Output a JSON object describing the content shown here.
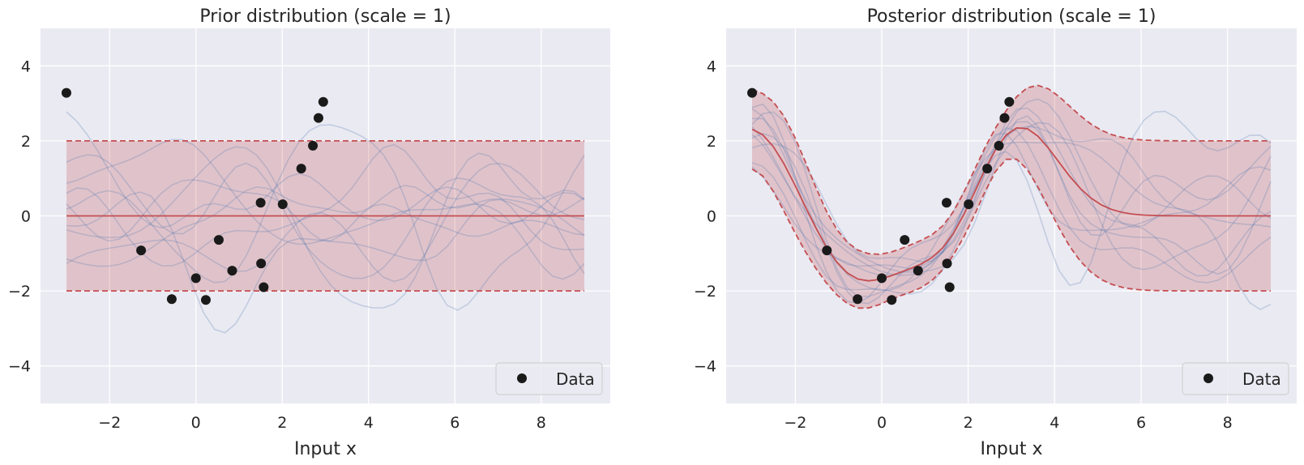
{
  "chart_data": [
    {
      "type": "line",
      "title": "Prior distribution (scale = 1)",
      "xlabel": "Input x",
      "ylabel": "",
      "xlim": [
        -3.6,
        9.6
      ],
      "ylim": [
        -5,
        5
      ],
      "xticks": [
        -2,
        0,
        2,
        4,
        6,
        8
      ],
      "yticks": [
        -4,
        -2,
        0,
        2,
        4
      ],
      "xtick_labels": [
        "−2",
        "0",
        "2",
        "4",
        "6",
        "8"
      ],
      "ytick_labels": [
        "−4",
        "−2",
        "0",
        "2",
        "4"
      ],
      "grid": true,
      "legend": {
        "position": "bottom-right",
        "entries": [
          "Data"
        ]
      },
      "mean_line": {
        "x": [
          -3,
          9
        ],
        "y": [
          0,
          0
        ]
      },
      "band": {
        "lower": -2,
        "upper": 2
      },
      "sample_count": 10,
      "data_points": {
        "name": "Data",
        "x": [
          -3.0,
          -1.27,
          -0.56,
          0.0,
          0.23,
          0.53,
          0.84,
          1.5,
          1.51,
          1.57,
          2.01,
          2.44,
          2.71,
          2.84,
          2.95
        ],
        "y": [
          3.28,
          -0.92,
          -2.22,
          -1.66,
          -2.24,
          -0.64,
          -1.46,
          0.35,
          -1.27,
          -1.9,
          0.31,
          1.26,
          1.87,
          2.61,
          3.04
        ]
      }
    },
    {
      "type": "line",
      "title": "Posterior distribution (scale = 1)",
      "xlabel": "Input x",
      "ylabel": "",
      "xlim": [
        -3.6,
        9.6
      ],
      "ylim": [
        -5,
        5
      ],
      "xticks": [
        -2,
        0,
        2,
        4,
        6,
        8
      ],
      "yticks": [
        -4,
        -2,
        0,
        2,
        4
      ],
      "xtick_labels": [
        "−2",
        "0",
        "2",
        "4",
        "6",
        "8"
      ],
      "ytick_labels": [
        "−4",
        "−2",
        "0",
        "2",
        "4"
      ],
      "grid": true,
      "legend": {
        "position": "bottom-right",
        "entries": [
          "Data"
        ]
      },
      "sample_count": 10,
      "data_points": {
        "name": "Data",
        "x": [
          -3.0,
          -1.27,
          -0.56,
          0.0,
          0.23,
          0.53,
          0.84,
          1.5,
          1.51,
          1.57,
          2.01,
          2.44,
          2.71,
          2.84,
          2.95
        ],
        "y": [
          3.28,
          -0.92,
          -2.22,
          -1.66,
          -2.24,
          -0.64,
          -1.46,
          0.35,
          -1.27,
          -1.9,
          0.31,
          1.26,
          1.87,
          2.61,
          3.04
        ]
      }
    }
  ],
  "colors": {
    "axes_background": "#eaeaf2",
    "grid": "#ffffff",
    "mean_and_band": "#c44e52",
    "samples": "#4c72b0",
    "data_marker": "#1a1a1a"
  }
}
